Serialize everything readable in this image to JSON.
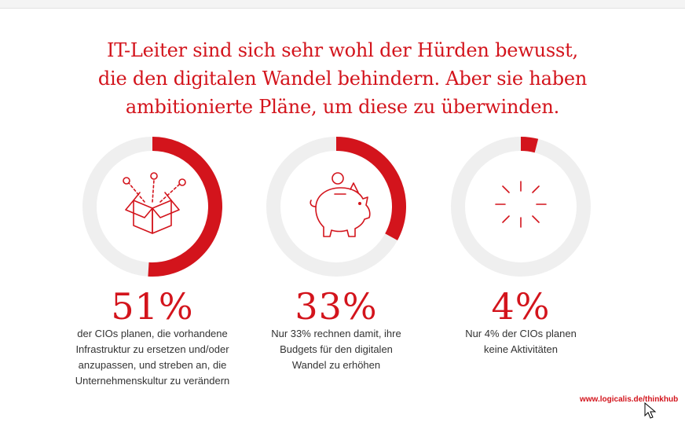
{
  "headline": {
    "line1": "IT-Leiter sind sich sehr wohl der Hürden bewusst,",
    "line2": "die den digitalen Wandel behindern. Aber sie haben",
    "line3": "ambitionierte Pläne, um diese zu überwinden."
  },
  "colors": {
    "accent": "#d3141c",
    "track": "#efefef",
    "text": "#333333"
  },
  "chart_data": [
    {
      "type": "pie",
      "values": [
        51
      ],
      "max": 100,
      "value_label": "51%",
      "icon": "open-box-icon",
      "description_lines": [
        "der CIOs planen, die vorhandene",
        "Infrastruktur zu ersetzen und/oder",
        "anzupassen, und streben an, die",
        "Unternehmenskultur zu verändern"
      ]
    },
    {
      "type": "pie",
      "values": [
        33
      ],
      "max": 100,
      "value_label": "33%",
      "icon": "piggy-bank-icon",
      "description_lines": [
        "Nur 33% rechnen damit, ihre",
        "Budgets für den digitalen",
        "Wandel zu erhöhen"
      ]
    },
    {
      "type": "pie",
      "values": [
        4
      ],
      "max": 100,
      "value_label": "4%",
      "icon": "burst-icon",
      "description_lines": [
        "Nur 4% der CIOs planen",
        "keine Aktivitäten"
      ]
    }
  ],
  "footer": {
    "url": "www.logicalis.de/thinkhub"
  }
}
